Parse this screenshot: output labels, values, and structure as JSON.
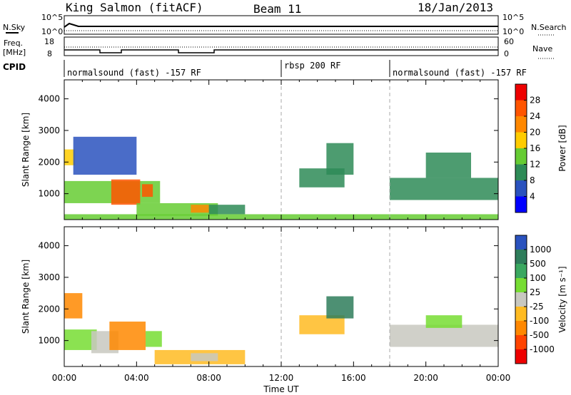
{
  "header": {
    "station": "King Salmon (fitACF)",
    "beam": "Beam 11",
    "date": "18/Jan/2013"
  },
  "strips": {
    "nsky_label": "N.Sky",
    "nsky_ticks": [
      "10^5",
      "10^0"
    ],
    "nsearch_label": "N.Search",
    "nsearch_ticks": [
      "10^5",
      "10^0"
    ],
    "freq_label_1": "Freq.",
    "freq_label_2": "[MHz]",
    "freq_ticks": [
      "18",
      "8"
    ],
    "nave_label": "Nave",
    "nave_ticks": [
      "60",
      "0"
    ],
    "cpid_label": "CPID"
  },
  "cpid_segments": [
    {
      "start": 0,
      "end": 12,
      "label": "normalsound (fast) -157 RF"
    },
    {
      "start": 12,
      "end": 18,
      "label": "rbsp 200 RF"
    },
    {
      "start": 18,
      "end": 24,
      "label": "normalsound (fast) -157 RF"
    }
  ],
  "axes": {
    "ylabel": "Slant Range [km]",
    "yticks": [
      "4000",
      "3000",
      "2000",
      "1000"
    ],
    "xlabel": "Time UT",
    "xticks": [
      "00:00",
      "04:00",
      "08:00",
      "12:00",
      "16:00",
      "20:00",
      "00:00"
    ]
  },
  "colorbars": {
    "power": {
      "label": "Power [dB]",
      "ticks": [
        "28",
        "24",
        "20",
        "16",
        "12",
        "8",
        "4"
      ],
      "colors": [
        "#0000ff",
        "#2a52be",
        "#2e8b57",
        "#66cc33",
        "#ffcc00",
        "#ff8800",
        "#ff5500",
        "#ee0000"
      ]
    },
    "velocity": {
      "label": "Velocity [m s⁻¹]",
      "ticks": [
        "1000",
        "500",
        "100",
        "25",
        "-25",
        "-100",
        "-500",
        "-1000"
      ],
      "colors": [
        "#2a52be",
        "#2e7d5b",
        "#3aa860",
        "#77dd33",
        "#c8c8c0",
        "#ffbb22",
        "#ff8800",
        "#ff4400",
        "#ee0000"
      ]
    }
  },
  "chart_data": [
    {
      "type": "heatmap",
      "title": "Power",
      "xlabel": "Time UT",
      "ylabel": "Slant Range [km]",
      "xlim": [
        0,
        24
      ],
      "ylim": [
        180,
        4600
      ],
      "colorbar_label": "Power [dB]",
      "colorbar_range": [
        0,
        32
      ],
      "regions": [
        {
          "t0": 0.0,
          "t1": 5.3,
          "r0": 700,
          "r1": 1400,
          "value": 12
        },
        {
          "t0": 0.0,
          "t1": 0.6,
          "r0": 1900,
          "r1": 2400,
          "value": 18
        },
        {
          "t0": 0.5,
          "t1": 4.0,
          "r0": 1600,
          "r1": 2800,
          "value": 6
        },
        {
          "t0": 2.6,
          "t1": 4.2,
          "r0": 650,
          "r1": 1450,
          "value": 26
        },
        {
          "t0": 4.3,
          "t1": 4.9,
          "r0": 900,
          "r1": 1300,
          "value": 24
        },
        {
          "t0": 4.0,
          "t1": 8.5,
          "r0": 300,
          "r1": 700,
          "value": 14
        },
        {
          "t0": 7.0,
          "t1": 8.0,
          "r0": 400,
          "r1": 650,
          "value": 22
        },
        {
          "t0": 8.0,
          "t1": 10.0,
          "r0": 350,
          "r1": 650,
          "value": 10
        },
        {
          "t0": 13.0,
          "t1": 15.5,
          "r0": 1200,
          "r1": 1800,
          "value": 8
        },
        {
          "t0": 14.5,
          "t1": 16.0,
          "r0": 1600,
          "r1": 2600,
          "value": 9
        },
        {
          "t0": 18.0,
          "t1": 24.0,
          "r0": 800,
          "r1": 1500,
          "value": 10
        },
        {
          "t0": 20.0,
          "t1": 22.5,
          "r0": 1500,
          "r1": 2300,
          "value": 8
        },
        {
          "t0": 0.0,
          "t1": 24.0,
          "r0": 180,
          "r1": 350,
          "value": 14
        }
      ]
    },
    {
      "type": "heatmap",
      "title": "Velocity",
      "xlabel": "Time UT",
      "ylabel": "Slant Range [km]",
      "xlim": [
        0,
        24
      ],
      "ylim": [
        180,
        4600
      ],
      "colorbar_label": "Velocity [m s⁻¹]",
      "colorbar_range": [
        -1000,
        1000
      ],
      "regions": [
        {
          "t0": 0.0,
          "t1": 1.8,
          "r0": 700,
          "r1": 1350,
          "value": 60
        },
        {
          "t0": 0.0,
          "t1": 1.0,
          "r0": 1700,
          "r1": 2500,
          "value": -300
        },
        {
          "t0": 1.5,
          "t1": 3.0,
          "r0": 600,
          "r1": 1300,
          "value": 0
        },
        {
          "t0": 2.5,
          "t1": 4.5,
          "r0": 700,
          "r1": 1600,
          "value": -400
        },
        {
          "t0": 4.5,
          "t1": 5.4,
          "r0": 800,
          "r1": 1300,
          "value": 60
        },
        {
          "t0": 5.0,
          "t1": 10.0,
          "r0": 250,
          "r1": 700,
          "value": -80
        },
        {
          "t0": 7.0,
          "t1": 8.5,
          "r0": 350,
          "r1": 600,
          "value": 0
        },
        {
          "t0": 13.0,
          "t1": 15.5,
          "r0": 1200,
          "r1": 1800,
          "value": -80
        },
        {
          "t0": 14.5,
          "t1": 16.0,
          "r0": 1700,
          "r1": 2400,
          "value": 300
        },
        {
          "t0": 18.0,
          "t1": 24.0,
          "r0": 800,
          "r1": 1500,
          "value": 0
        },
        {
          "t0": 20.0,
          "t1": 22.0,
          "r0": 1400,
          "r1": 1800,
          "value": 60
        }
      ]
    }
  ]
}
